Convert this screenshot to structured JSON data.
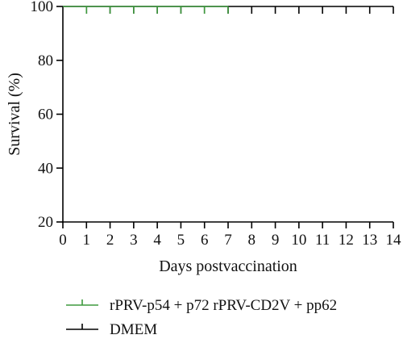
{
  "chart_data": {
    "type": "line",
    "subtype": "kaplan-meier-survival",
    "xlabel": "Days postvaccination",
    "ylabel": "Survival (%)",
    "xlim": [
      0,
      14
    ],
    "ylim": [
      20,
      100
    ],
    "xticks": [
      0,
      1,
      2,
      3,
      4,
      5,
      6,
      7,
      8,
      9,
      10,
      11,
      12,
      13,
      14
    ],
    "yticks": [
      20,
      40,
      60,
      80,
      100
    ],
    "grid": false,
    "legend_position": "bottom-left",
    "censor_marks": true,
    "series": [
      {
        "name": "DMEM",
        "color": "#000000",
        "x": [
          0,
          1,
          2,
          3,
          4,
          5,
          6,
          7,
          8,
          9,
          10,
          11,
          12,
          13,
          14
        ],
        "y": [
          100,
          100,
          100,
          100,
          100,
          100,
          100,
          100,
          100,
          100,
          100,
          100,
          100,
          100,
          100
        ]
      },
      {
        "name": "rPRV-p54 + p72 rPRV-CD2V + pp62",
        "color": "#3e9a3e",
        "x": [
          0,
          1,
          2,
          3,
          4,
          5,
          6,
          7
        ],
        "y": [
          100,
          100,
          100,
          100,
          100,
          100,
          100,
          100
        ]
      }
    ],
    "legend_order": [
      "rPRV-p54 + p72 rPRV-CD2V + pp62",
      "DMEM"
    ]
  }
}
